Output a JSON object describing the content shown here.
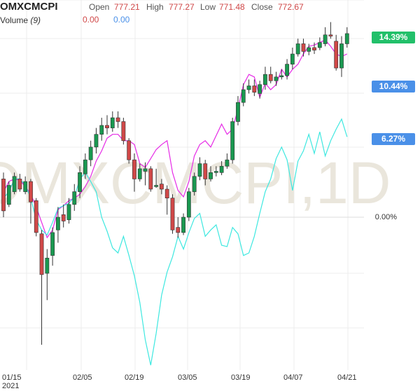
{
  "header": {
    "symbol": "OMXCMCPI",
    "open_label": "Open",
    "open_value": "777.21",
    "high_label": "High",
    "high_value": "777.27",
    "low_label": "Low",
    "low_value": "771.48",
    "close_label": "Close",
    "close_value": "772.67",
    "volume_label": "Volume",
    "volume_param": "(9)",
    "volume_value_1": "0.00",
    "volume_value_2": "0.00"
  },
  "watermark": "OMXCMCPI,1D",
  "badges": {
    "main": "14.39%",
    "magenta": "10.44%",
    "cyan": "6.27%",
    "zero": "0.00%"
  },
  "colors": {
    "up": "#1a9850",
    "down": "#d04848",
    "magenta": "#e62be6",
    "cyan": "#3ee8e0",
    "badge_main": "#22c06a",
    "badge_blue": "#4a90e8",
    "grid": "#ececec",
    "watermark": "#eae6dc"
  },
  "chart_data": {
    "type": "candlestick",
    "unit": "% change",
    "x_ticks": [
      "01/15",
      "02/05",
      "02/19",
      "03/05",
      "03/19",
      "04/07",
      "04/21"
    ],
    "x_tick_year": "2021",
    "zero_line_value": 0,
    "candles": [
      [
        3.0,
        0.5,
        3.5,
        0.0
      ],
      [
        1.0,
        2.5,
        2.8,
        0.8
      ],
      [
        2.0,
        3.2,
        3.5,
        1.8
      ],
      [
        3.0,
        2.2,
        3.4,
        2.0
      ],
      [
        2.0,
        2.8,
        3.2,
        1.8
      ],
      [
        2.8,
        1.2,
        3.0,
        -0.5
      ],
      [
        1.3,
        -1.2,
        1.5,
        -1.5
      ],
      [
        -1.3,
        -4.5,
        -1.0,
        -10.0
      ],
      [
        -4.4,
        -3.2,
        -2.5,
        -6.5
      ],
      [
        -3.0,
        -1.2,
        -0.8,
        -3.8
      ],
      [
        -1.0,
        0.0,
        0.8,
        -2.0
      ],
      [
        0.2,
        -0.3,
        1.0,
        -0.8
      ],
      [
        -0.2,
        1.0,
        1.5,
        -0.5
      ],
      [
        1.0,
        2.0,
        2.6,
        0.5
      ],
      [
        2.0,
        3.5,
        4.0,
        1.5
      ],
      [
        3.4,
        4.5,
        5.0,
        3.0
      ],
      [
        4.5,
        5.5,
        6.0,
        4.0
      ],
      [
        5.5,
        6.5,
        7.0,
        5.0
      ],
      [
        6.5,
        7.2,
        7.8,
        6.0
      ],
      [
        7.2,
        7.0,
        8.0,
        6.5
      ],
      [
        7.0,
        7.8,
        8.3,
        6.7
      ],
      [
        7.8,
        7.5,
        8.3,
        7.0
      ],
      [
        7.5,
        6.0,
        7.8,
        5.7
      ],
      [
        6.0,
        4.5,
        6.2,
        4.2
      ],
      [
        4.5,
        3.0,
        5.0,
        2.0
      ],
      [
        3.0,
        3.8,
        4.2,
        2.8
      ],
      [
        3.6,
        3.8,
        4.3,
        2.5
      ],
      [
        3.8,
        2.2,
        4.0,
        2.0
      ],
      [
        2.4,
        2.5,
        3.8,
        2.3
      ],
      [
        2.6,
        2.2,
        3.0,
        1.8
      ],
      [
        2.2,
        1.5,
        2.5,
        0.2
      ],
      [
        1.5,
        -1.0,
        1.8,
        -1.3
      ],
      [
        -0.8,
        -1.2,
        0.0,
        -1.6
      ],
      [
        -1.2,
        0.0,
        0.3,
        -1.4
      ],
      [
        0.0,
        2.0,
        2.3,
        -0.3
      ],
      [
        2.0,
        3.2,
        3.5,
        1.7
      ],
      [
        3.2,
        4.2,
        4.7,
        2.9
      ],
      [
        4.2,
        3.0,
        4.5,
        2.5
      ],
      [
        3.0,
        3.5,
        4.0,
        2.8
      ],
      [
        3.5,
        3.6,
        4.0,
        3.2
      ],
      [
        3.5,
        4.0,
        4.4,
        3.3
      ],
      [
        4.0,
        4.5,
        5.0,
        3.8
      ],
      [
        4.5,
        7.5,
        7.8,
        4.2
      ],
      [
        7.5,
        9.0,
        9.5,
        7.2
      ],
      [
        9.0,
        10.0,
        10.5,
        8.7
      ],
      [
        10.0,
        10.3,
        10.8,
        9.7
      ],
      [
        10.3,
        9.8,
        10.8,
        9.5
      ],
      [
        9.7,
        10.4,
        10.7,
        9.3
      ],
      [
        10.4,
        11.2,
        11.8,
        10.0
      ],
      [
        11.2,
        10.7,
        11.8,
        10.5
      ],
      [
        10.7,
        11.0,
        11.4,
        10.3
      ],
      [
        11.0,
        11.1,
        11.6,
        10.8
      ],
      [
        11.1,
        12.0,
        12.4,
        10.8
      ],
      [
        12.0,
        12.8,
        13.3,
        11.6
      ],
      [
        12.8,
        13.6,
        14.0,
        12.6
      ],
      [
        13.6,
        13.0,
        14.0,
        12.6
      ],
      [
        13.0,
        13.3,
        13.6,
        12.7
      ],
      [
        13.3,
        13.1,
        13.7,
        12.8
      ],
      [
        13.3,
        13.7,
        14.1,
        13.1
      ],
      [
        13.6,
        14.3,
        14.9,
        13.4
      ],
      [
        14.3,
        14.2,
        15.3,
        14.0
      ],
      [
        13.8,
        11.7,
        14.3,
        11.5
      ],
      [
        11.7,
        13.6,
        14.2,
        11.0
      ],
      [
        13.6,
        14.4,
        14.9,
        13.3
      ]
    ],
    "series": [
      {
        "values": [
          2.0,
          2.8,
          3.0,
          2.9,
          2.4,
          1.8,
          0.8,
          -0.4,
          -1.6,
          -1.0,
          0.6,
          0.9,
          1.3,
          1.5,
          1.8,
          2.4,
          3.2,
          4.4,
          5.2,
          6.2,
          6.5,
          6.5,
          6.0,
          6.0,
          5.7,
          4.2,
          3.9,
          4.6,
          5.3,
          5.7,
          6.0,
          3.5,
          2.1,
          1.6,
          2.8,
          4.8,
          5.7,
          6.0,
          5.5,
          6.4,
          7.3,
          6.5,
          6.9,
          8.5,
          10.4,
          11.2,
          11.0,
          9.4,
          10.5,
          10.0,
          10.4,
          11.6,
          11.0,
          11.6,
          12.0,
          12.8,
          13.4,
          13.5,
          13.7,
          13.9,
          13.4,
          12.8,
          12.6,
          12.8
        ]
      },
      {
        "values": [
          1.5,
          2.0,
          3.0,
          3.0,
          2.5,
          1.5,
          -0.2,
          -1.0,
          -1.4,
          -0.4,
          0.7,
          0.9,
          1.1,
          1.6,
          3.0,
          3.5,
          2.8,
          2.0,
          0.0,
          -1.1,
          -2.4,
          -2.8,
          -1.5,
          -3.0,
          -4.6,
          -6.7,
          -9.6,
          -11.6,
          -9.1,
          -6.1,
          -4.3,
          -3.1,
          -1.5,
          -2.5,
          -1.2,
          -0.1,
          0.3,
          -1.5,
          -1.0,
          -0.6,
          -2.2,
          -2.3,
          -0.8,
          -1.3,
          -3.0,
          -2.8,
          -1.5,
          0.3,
          2.0,
          3.0,
          4.6,
          5.5,
          4.5,
          2.1,
          4.4,
          5.2,
          6.5,
          5.0,
          6.7,
          4.8,
          6.0,
          6.9,
          7.7,
          6.3
        ]
      }
    ]
  }
}
